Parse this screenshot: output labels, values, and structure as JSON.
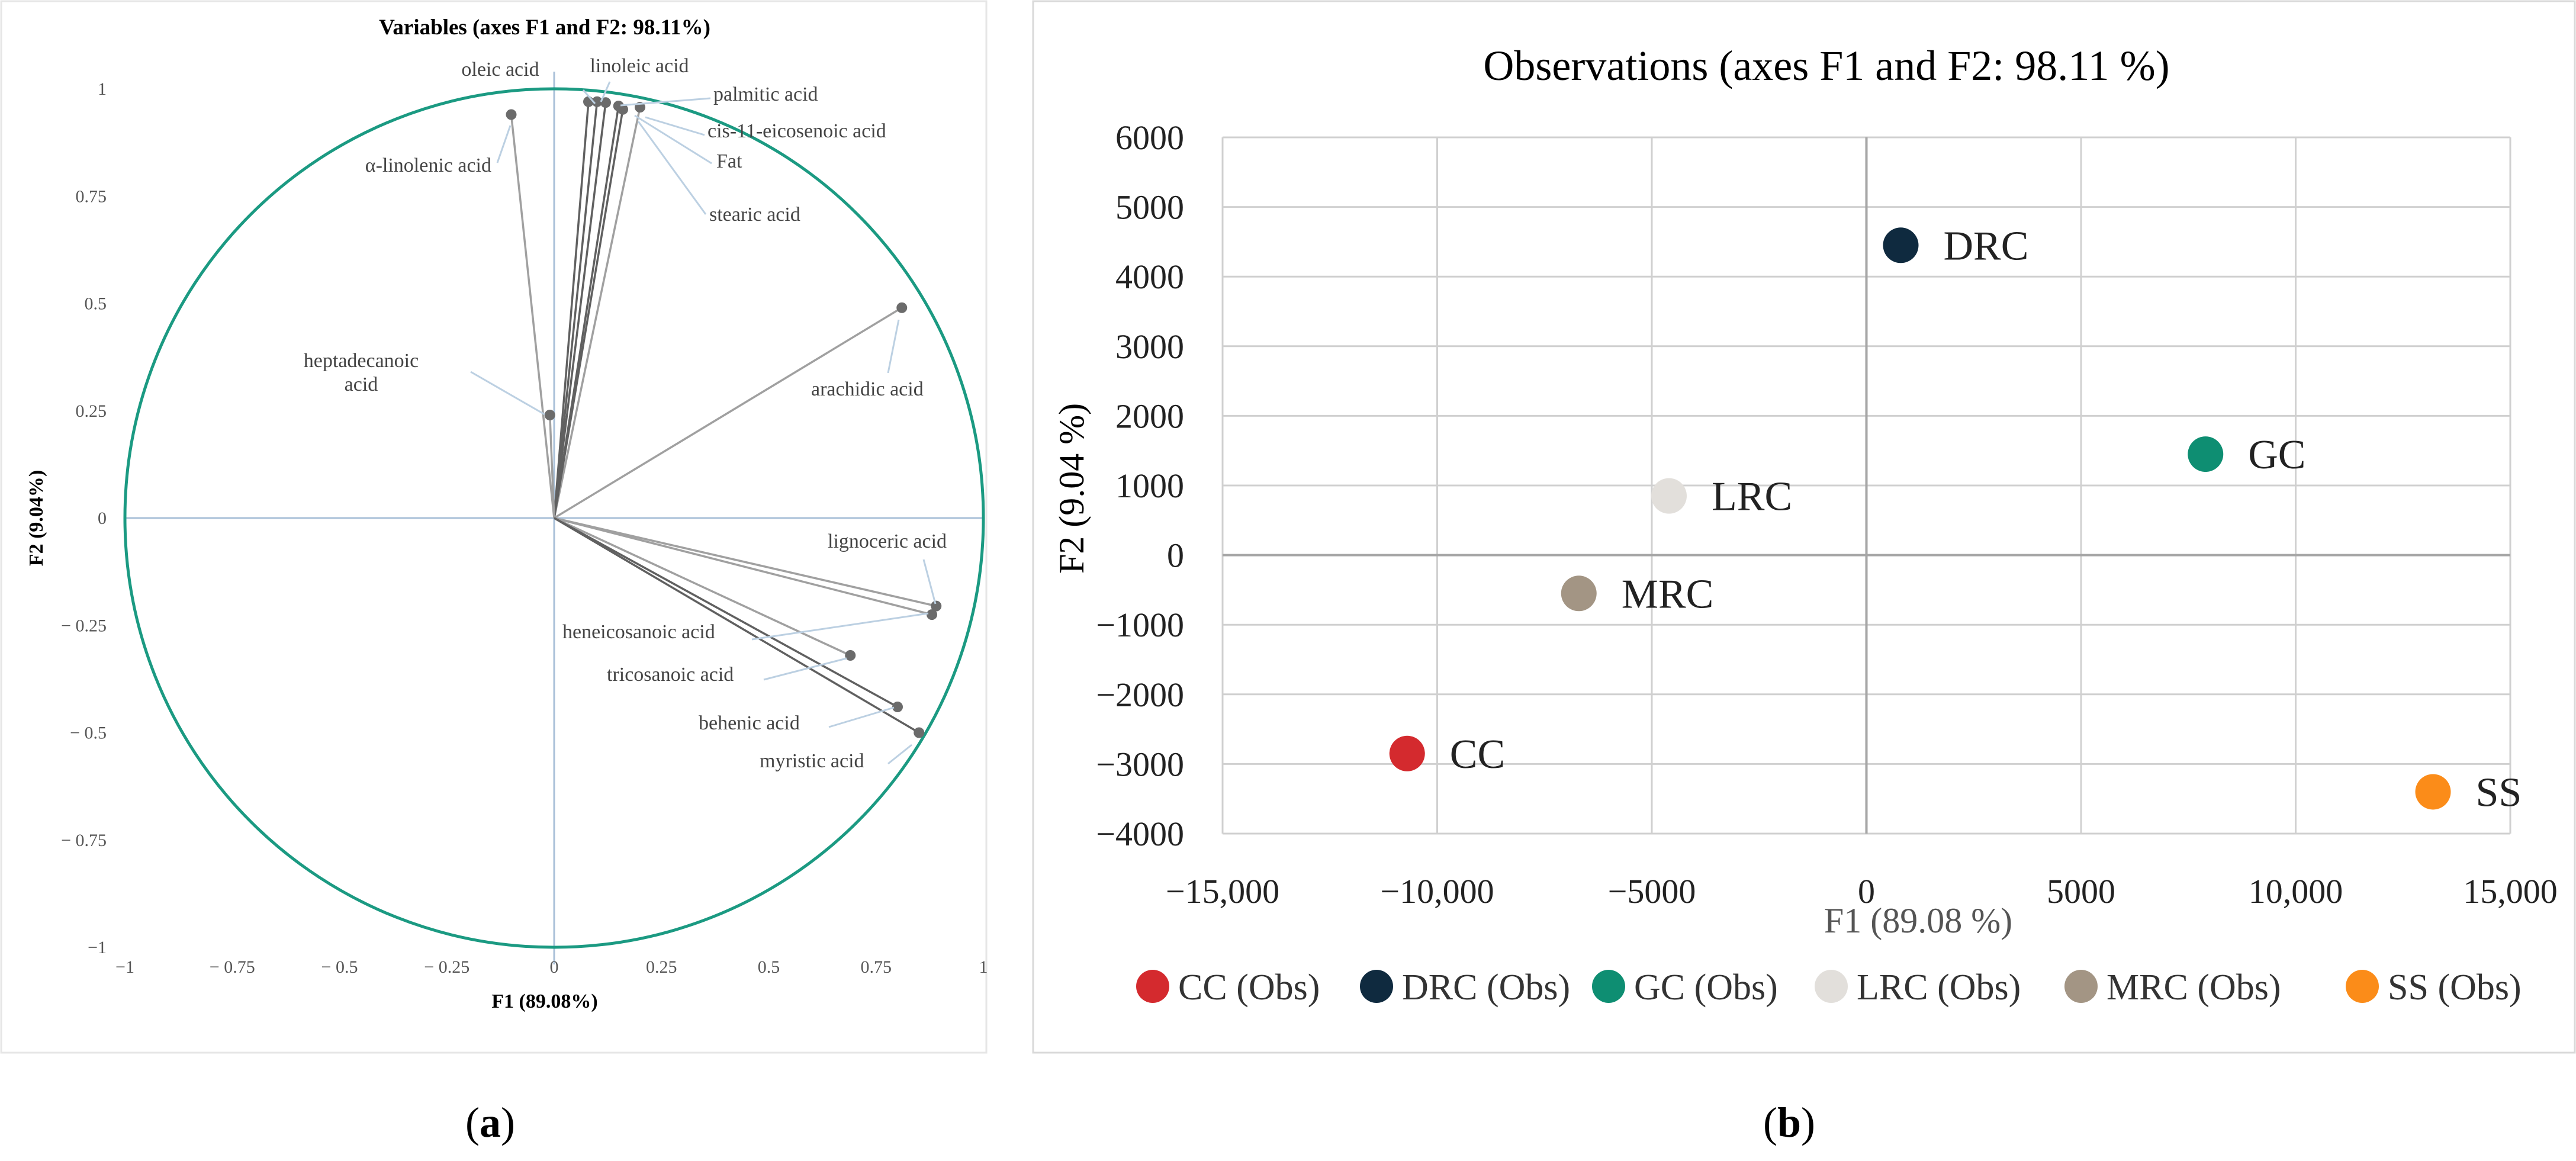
{
  "colors": {
    "circle": "#1b9a82",
    "axis_a": "#a9c0d8",
    "grid_b": "#d0d0d0",
    "title_a": "#3d5470",
    "ray": "#a0a0a0",
    "ray_dark": "#606060",
    "point": "#6b6b6b"
  },
  "panels": {
    "a_caption": "a",
    "b_caption": "b"
  },
  "chart_data": [
    {
      "type": "scatter",
      "subtype": "correlation-circle",
      "title": "Variables (axes F1 and F2: 98.11%)",
      "xlabel": "F1 (89.08%)",
      "ylabel": "F2 (9.04%)",
      "xlim": [
        -1,
        1
      ],
      "ylim": [
        -1,
        1
      ],
      "xticks": [
        "−1",
        "− 0.75",
        "− 0.5",
        "− 0.25",
        "0",
        "0.25",
        "0.5",
        "0.75",
        "1"
      ],
      "yticks": [
        "1",
        "0.75",
        "0.5",
        "0.25",
        "0",
        "− 0.25",
        "− 0.5",
        "− 0.75",
        "−1"
      ],
      "variables": [
        {
          "name": "oleic acid",
          "x": 0.08,
          "y": 0.97,
          "shade": "dark"
        },
        {
          "name": "linoleic acid",
          "x": 0.1,
          "y": 0.97,
          "shade": "dark"
        },
        {
          "name": "palmitic acid",
          "x": 0.12,
          "y": 0.968,
          "shade": "dark"
        },
        {
          "name": "cis-11-eicosenoic acid",
          "x": 0.2,
          "y": 0.957,
          "shade": "light"
        },
        {
          "name": "Fat",
          "x": 0.15,
          "y": 0.96,
          "shade": "dark"
        },
        {
          "name": "stearic acid",
          "x": 0.16,
          "y": 0.952,
          "shade": "dark"
        },
        {
          "name": "α-linolenic acid",
          "x": -0.1,
          "y": 0.94,
          "shade": "light"
        },
        {
          "name": "heptadecanoic acid",
          "x": -0.01,
          "y": 0.24,
          "shade": "light"
        },
        {
          "name": "arachidic acid",
          "x": 0.81,
          "y": 0.49,
          "shade": "light"
        },
        {
          "name": "lignoceric acid",
          "x": 0.89,
          "y": -0.205,
          "shade": "light"
        },
        {
          "name": "heneicosanoic acid",
          "x": 0.88,
          "y": -0.225,
          "shade": "light"
        },
        {
          "name": "tricosanoic acid",
          "x": 0.69,
          "y": -0.32,
          "shade": "light"
        },
        {
          "name": "behenic acid",
          "x": 0.8,
          "y": -0.44,
          "shade": "dark"
        },
        {
          "name": "myristic acid",
          "x": 0.85,
          "y": -0.5,
          "shade": "dark"
        }
      ]
    },
    {
      "type": "scatter",
      "title": "Observations (axes F1 and F2: 98.11 %)",
      "xlabel": "F1 (89.08 %)",
      "ylabel": "F2 (9.04 %)",
      "xlim": [
        -15000,
        15000
      ],
      "ylim": [
        -4000,
        6000
      ],
      "grid": true,
      "xticks": [
        "−15,000",
        "−10,000",
        "−5000",
        "0",
        "5000",
        "10,000",
        "15,000"
      ],
      "yticks": [
        "6000",
        "5000",
        "4000",
        "3000",
        "2000",
        "1000",
        "0",
        "−1000",
        "−2000",
        "−3000",
        "−4000"
      ],
      "series": [
        {
          "name": "CC (Obs)",
          "label": "CC",
          "x": -10700,
          "y": -2850,
          "color": "#d42a2e"
        },
        {
          "name": "DRC (Obs)",
          "label": "DRC",
          "x": 800,
          "y": 4450,
          "color": "#0f2a3f"
        },
        {
          "name": "GC (Obs)",
          "label": "GC",
          "x": 7900,
          "y": 1450,
          "color": "#0e8e72"
        },
        {
          "name": "LRC (Obs)",
          "label": "LRC",
          "x": -4600,
          "y": 850,
          "color": "#e2dfdb"
        },
        {
          "name": "MRC (Obs)",
          "label": "MRC",
          "x": -6700,
          "y": -550,
          "color": "#a39584"
        },
        {
          "name": "SS (Obs)",
          "label": "SS",
          "x": 13200,
          "y": -3400,
          "color": "#fb8c19"
        }
      ],
      "legend": "bottom"
    }
  ]
}
